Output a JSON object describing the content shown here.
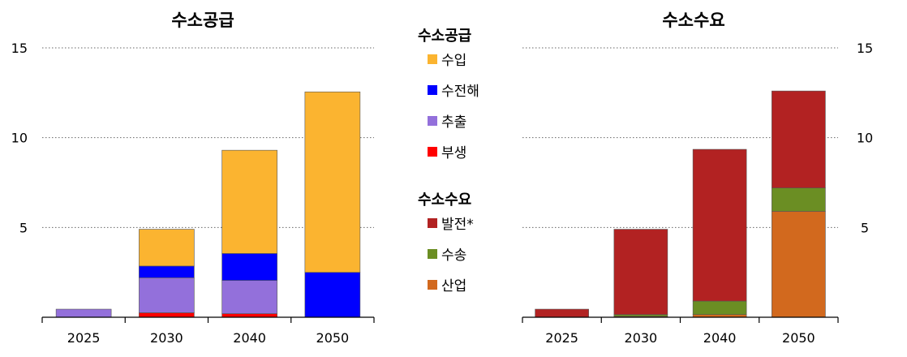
{
  "chart_data": [
    {
      "type": "bar",
      "stacked": true,
      "title": "수소공급",
      "categories": [
        "2025",
        "2030",
        "2040",
        "2050"
      ],
      "ylim": [
        0,
        15
      ],
      "yticks": [
        "5",
        "10",
        "15"
      ],
      "grid": true,
      "y_axis_side": "left",
      "series": [
        {
          "name": "부생",
          "color": "#ff0000",
          "values": [
            0.0,
            0.25,
            0.2,
            0.0
          ]
        },
        {
          "name": "추출",
          "color": "#9370db",
          "values": [
            0.45,
            1.95,
            1.85,
            0.0
          ]
        },
        {
          "name": "수전해",
          "color": "#0000ff",
          "values": [
            0.0,
            0.65,
            1.5,
            2.5
          ]
        },
        {
          "name": "수입",
          "color": "#fbb430",
          "values": [
            0.0,
            2.05,
            5.75,
            10.05
          ]
        }
      ]
    },
    {
      "type": "bar",
      "stacked": true,
      "title": "수소수요",
      "categories": [
        "2025",
        "2030",
        "2040",
        "2050"
      ],
      "ylim": [
        0,
        15
      ],
      "yticks": [
        "5",
        "10",
        "15"
      ],
      "grid": true,
      "y_axis_side": "right",
      "series": [
        {
          "name": "산업",
          "color": "#d2691e",
          "values": [
            0.0,
            0.05,
            0.15,
            5.9
          ]
        },
        {
          "name": "수송",
          "color": "#6b8e23",
          "values": [
            0.0,
            0.1,
            0.75,
            1.3
          ]
        },
        {
          "name": "발전*",
          "color": "#b22222",
          "values": [
            0.45,
            4.75,
            8.45,
            5.4
          ]
        }
      ]
    }
  ],
  "legend": {
    "placement": "center",
    "groups": [
      {
        "title": "수소공급",
        "items": [
          {
            "label": "수입",
            "color": "#fbb430"
          },
          {
            "label": "수전해",
            "color": "#0000ff"
          },
          {
            "label": "추출",
            "color": "#9370db"
          },
          {
            "label": "부생",
            "color": "#ff0000"
          }
        ]
      },
      {
        "title": "수소수요",
        "items": [
          {
            "label": "발전*",
            "color": "#b22222"
          },
          {
            "label": "수송",
            "color": "#6b8e23"
          },
          {
            "label": "산업",
            "color": "#d2691e"
          }
        ]
      }
    ]
  }
}
